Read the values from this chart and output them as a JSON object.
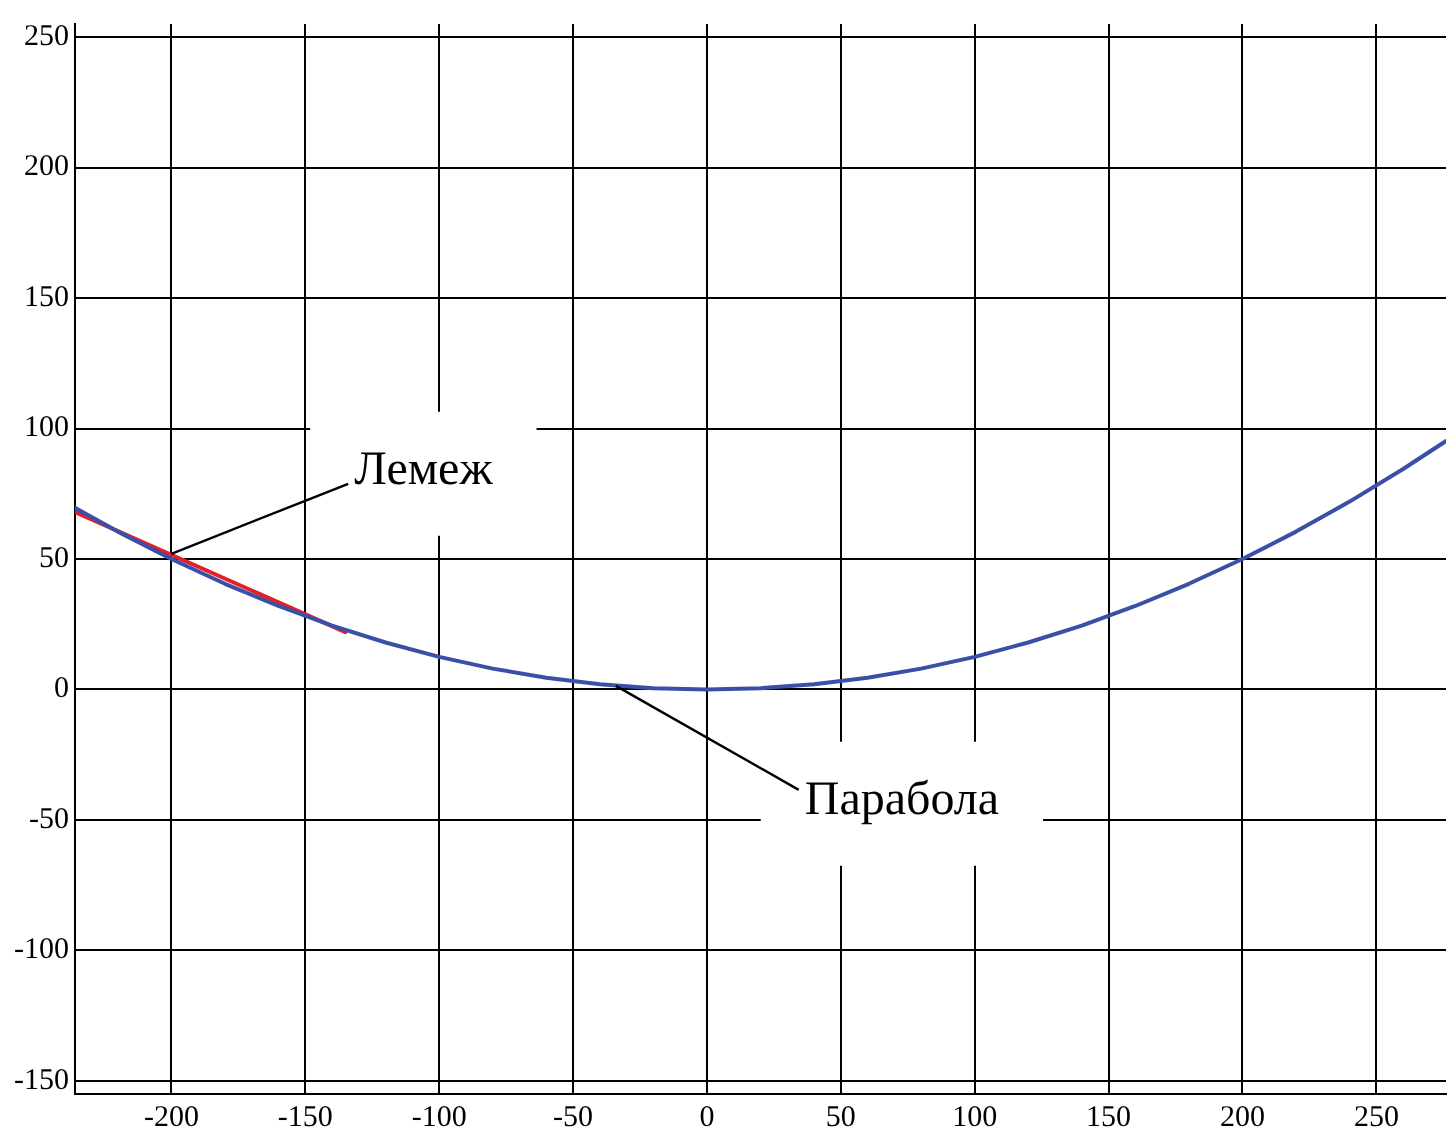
{
  "chart_data": {
    "type": "line",
    "xlim": [
      -236,
      276
    ],
    "ylim": [
      -155,
      255
    ],
    "xticks": [
      -200,
      -150,
      -100,
      -50,
      0,
      50,
      100,
      150,
      200,
      250
    ],
    "yticks": [
      -150,
      -100,
      -50,
      0,
      50,
      100,
      150,
      200,
      250
    ],
    "grid": true,
    "legend": false,
    "marker": "none",
    "line_style": "solid",
    "series": [
      {
        "color": "#3a4fa8",
        "x": [
          -236,
          -220,
          -200,
          -180,
          -160,
          -140,
          -120,
          -100,
          -80,
          -60,
          -40,
          -20,
          0,
          20,
          40,
          60,
          80,
          100,
          120,
          140,
          160,
          180,
          200,
          220,
          240,
          260,
          276
        ],
        "values": [
          69.6,
          60.5,
          50,
          40.5,
          32,
          24.5,
          18,
          12.5,
          8,
          4.5,
          2,
          0.5,
          0,
          0.5,
          2,
          4.5,
          8,
          12.5,
          18,
          24.5,
          32,
          40.5,
          50,
          60.5,
          72,
          84.5,
          95.2
        ]
      },
      {
        "color": "#e0202a",
        "x": [
          -236,
          -135
        ],
        "values": [
          68,
          22
        ]
      }
    ],
    "annotations": [
      {
        "text": "Лемеж",
        "x": -200,
        "y": 52
      },
      {
        "text": "Парабола",
        "x": -34,
        "y": 1.4
      }
    ]
  }
}
